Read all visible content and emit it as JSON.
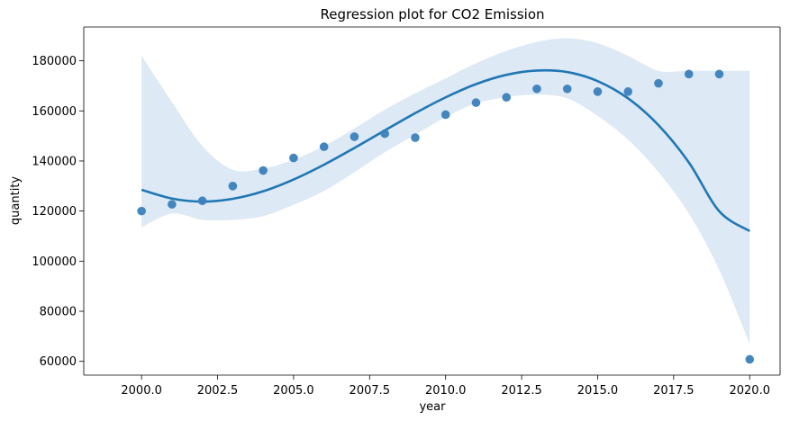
{
  "chart_data": {
    "type": "scatter",
    "title": "Regression plot for CO2 Emission",
    "xlabel": "year",
    "ylabel": "quantity",
    "xlim": [
      1998.1,
      2021.0
    ],
    "ylim": [
      54500,
      193500
    ],
    "x_ticks": [
      2000.0,
      2002.5,
      2005.0,
      2007.5,
      2010.0,
      2012.5,
      2015.0,
      2017.5,
      2020.0
    ],
    "x_tick_labels": [
      "2000.0",
      "2002.5",
      "2005.0",
      "2007.5",
      "2010.0",
      "2012.5",
      "2015.0",
      "2017.5",
      "2020.0"
    ],
    "y_ticks": [
      60000,
      80000,
      100000,
      120000,
      140000,
      160000,
      180000
    ],
    "y_tick_labels": [
      "60000",
      "80000",
      "100000",
      "120000",
      "140000",
      "160000",
      "180000"
    ],
    "grid": false,
    "colors": {
      "points": "#3a7fba",
      "line": "#1f77b4",
      "band": "#c6dbef"
    },
    "points": {
      "x": [
        2000,
        2001,
        2002,
        2003,
        2004,
        2005,
        2006,
        2007,
        2008,
        2009,
        2010,
        2011,
        2012,
        2013,
        2014,
        2015,
        2016,
        2017,
        2018,
        2019,
        2020
      ],
      "y": [
        120000,
        122700,
        124100,
        130000,
        136200,
        141200,
        145700,
        149700,
        150900,
        149300,
        158500,
        163300,
        165400,
        168800,
        168800,
        167700,
        167700,
        171000,
        174700,
        174700,
        60800
      ]
    },
    "regression": {
      "x": [
        2000,
        2001,
        2002,
        2003,
        2004,
        2005,
        2006,
        2007,
        2008,
        2009,
        2010,
        2011,
        2012,
        2013,
        2014,
        2015,
        2016,
        2017,
        2018,
        2019,
        2020
      ],
      "y": [
        128500,
        125000,
        123800,
        124900,
        127900,
        132600,
        138500,
        145200,
        152200,
        159100,
        165400,
        170700,
        174400,
        176100,
        175500,
        171900,
        165000,
        154300,
        139400,
        119900,
        112000
      ],
      "ci_upper": [
        182000,
        163500,
        146000,
        136500,
        137000,
        140500,
        146000,
        153000,
        160500,
        167000,
        173000,
        179000,
        184000,
        187500,
        189000,
        187000,
        182000,
        176000,
        176000,
        176000,
        176000
      ],
      "ci_lower": [
        113500,
        119000,
        116500,
        116500,
        118000,
        122500,
        128000,
        135500,
        143500,
        150500,
        157500,
        163000,
        165500,
        166500,
        165000,
        158000,
        148500,
        135500,
        119000,
        96500,
        67000
      ]
    }
  }
}
